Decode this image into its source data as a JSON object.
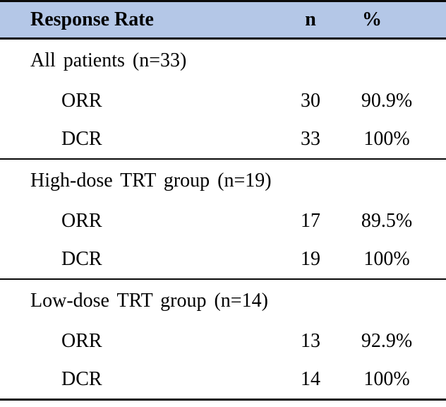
{
  "table": {
    "header": {
      "col1": "Response Rate",
      "col2": "n",
      "col3": "%"
    },
    "sections": [
      {
        "title": "All patients (n=33)",
        "rows": [
          {
            "label": "ORR",
            "n": "30",
            "pct": "90.9%"
          },
          {
            "label": "DCR",
            "n": "33",
            "pct": "100%"
          }
        ]
      },
      {
        "title": "High-dose TRT group (n=19)",
        "rows": [
          {
            "label": "ORR",
            "n": "17",
            "pct": "89.5%"
          },
          {
            "label": "DCR",
            "n": "19",
            "pct": "100%"
          }
        ]
      },
      {
        "title": "Low-dose TRT group (n=14)",
        "rows": [
          {
            "label": "ORR",
            "n": "13",
            "pct": "92.9%"
          },
          {
            "label": "DCR",
            "n": "14",
            "pct": "100%"
          }
        ]
      }
    ],
    "colors": {
      "header_bg": "#b4c7e7",
      "border": "#0a0a0a",
      "text": "#000000"
    }
  }
}
